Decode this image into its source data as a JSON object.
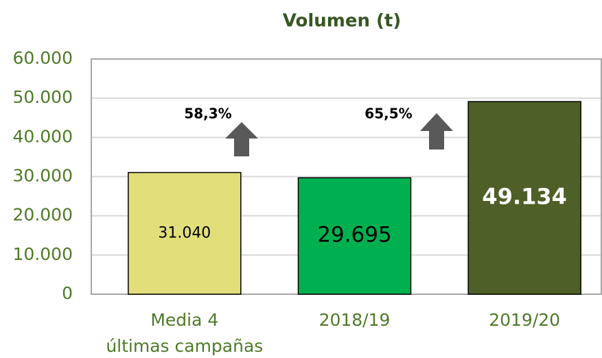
{
  "chart_data": {
    "type": "bar",
    "title": "Volumen (t)",
    "categories": [
      "Media 4\núltimas campañas",
      "2018/19",
      "2019/20"
    ],
    "values": [
      31040,
      29695,
      49134
    ],
    "value_labels": [
      "31.040",
      "29.695",
      "49.134"
    ],
    "colors": [
      "#e2df7b",
      "#00b050",
      "#4e5f27"
    ],
    "ylim": [
      0,
      60000
    ],
    "yticks": [
      0,
      {
        "value": 10000,
        "label": "10.000"
      },
      {
        "value": 20000,
        "label": "20.000"
      },
      {
        "value": 30000,
        "label": "30.000"
      },
      {
        "value": 40000,
        "label": "40.000"
      },
      {
        "value": 50000,
        "label": "50.000"
      },
      {
        "value": 60000,
        "label": "60.000"
      }
    ],
    "grid": true,
    "annotations": [
      {
        "text": "58,3%"
      },
      {
        "text": "65,5%"
      }
    ]
  }
}
